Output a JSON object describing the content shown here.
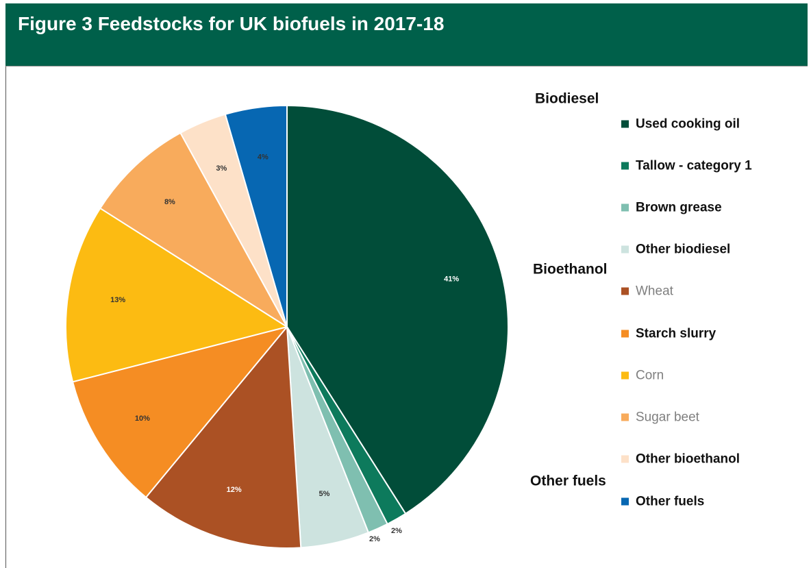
{
  "figure": {
    "title": "Figure 3 Feedstocks for UK biofuels in 2017-18"
  },
  "chart_data": {
    "type": "pie",
    "title": "",
    "start": "top",
    "direction": "clockwise",
    "legend_placement": "right",
    "slices": [
      {
        "label": "Used cooking oil",
        "value": 41,
        "display": "41%",
        "color": "#014d39",
        "label_color": "#ffffff",
        "group": "Biodiesel"
      },
      {
        "label": "Tallow - category 1",
        "value": 1.5,
        "display": "2%",
        "color": "#0d7a5c",
        "label_color": "#333333",
        "group": "Biodiesel"
      },
      {
        "label": "Brown grease",
        "value": 1.5,
        "display": "2%",
        "color": "#7fbfb0",
        "label_color": "#333333",
        "group": "Biodiesel"
      },
      {
        "label": "Other biodiesel",
        "value": 5,
        "display": "5%",
        "color": "#cde3df",
        "label_color": "#333333",
        "group": "Biodiesel"
      },
      {
        "label": "Wheat",
        "value": 12,
        "display": "12%",
        "color": "#ab5124",
        "label_color": "#ffffff",
        "group": "Bioethanol"
      },
      {
        "label": "Starch slurry",
        "value": 10,
        "display": "10%",
        "color": "#f58d23",
        "label_color": "#333333",
        "group": "Bioethanol"
      },
      {
        "label": "Corn",
        "value": 13,
        "display": "13%",
        "color": "#fcbb12",
        "label_color": "#333333",
        "group": "Bioethanol"
      },
      {
        "label": "Sugar beet",
        "value": 8,
        "display": "8%",
        "color": "#f8ab5c",
        "label_color": "#333333",
        "group": "Bioethanol"
      },
      {
        "label": "Other bioethanol",
        "value": 3.5,
        "display": "3%",
        "color": "#fde1c8",
        "label_color": "#333333",
        "group": "Bioethanol"
      },
      {
        "label": "Other fuels",
        "value": 4.5,
        "display": "4%",
        "color": "#0767b2",
        "label_color": "#333333",
        "group": "Other fuels"
      }
    ],
    "legend": {
      "groups": [
        {
          "heading": "Biodiesel",
          "items": [
            {
              "label": "Used cooking oil",
              "color": "#014d39",
              "style": "bold"
            },
            {
              "label": "Tallow - category 1",
              "color": "#0d7a5c",
              "style": "bold"
            },
            {
              "label": "Brown grease",
              "color": "#7fbfb0",
              "style": "bold"
            },
            {
              "label": "Other biodiesel",
              "color": "#cde3df",
              "style": "bold"
            }
          ]
        },
        {
          "heading": "Bioethanol",
          "items": [
            {
              "label": "Wheat",
              "color": "#ab5124",
              "style": "muted"
            },
            {
              "label": "Starch slurry",
              "color": "#f58d23",
              "style": "bold"
            },
            {
              "label": "Corn",
              "color": "#fcbb12",
              "style": "muted"
            },
            {
              "label": "Sugar beet",
              "color": "#f8ab5c",
              "style": "muted"
            },
            {
              "label": "Other bioethanol",
              "color": "#fde1c8",
              "style": "bold"
            }
          ]
        },
        {
          "heading": "Other fuels",
          "items": [
            {
              "label": "Other fuels",
              "color": "#0767b2",
              "style": "bold"
            }
          ]
        }
      ]
    }
  }
}
